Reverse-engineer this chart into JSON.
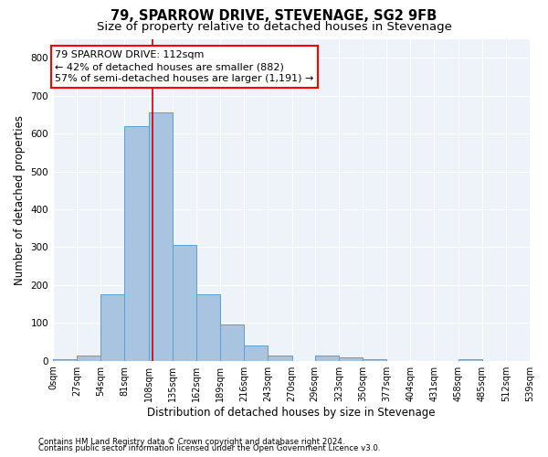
{
  "title_line1": "79, SPARROW DRIVE, STEVENAGE, SG2 9FB",
  "title_line2": "Size of property relative to detached houses in Stevenage",
  "xlabel": "Distribution of detached houses by size in Stevenage",
  "ylabel": "Number of detached properties",
  "bar_color": "#a8c4e0",
  "bar_edge_color": "#5a9fd4",
  "annotation_line1": "79 SPARROW DRIVE: 112sqm",
  "annotation_line2": "← 42% of detached houses are smaller (882)",
  "annotation_line3": "57% of semi-detached houses are larger (1,191) →",
  "vline_x": 112,
  "vline_color": "#cc0000",
  "footnote1": "Contains HM Land Registry data © Crown copyright and database right 2024.",
  "footnote2": "Contains public sector information licensed under the Open Government Licence v3.0.",
  "bin_edges": [
    0,
    27,
    54,
    81,
    108,
    135,
    162,
    189,
    216,
    243,
    270,
    296,
    323,
    350,
    377,
    404,
    431,
    458,
    485,
    512,
    539
  ],
  "bar_heights": [
    5,
    13,
    175,
    620,
    655,
    305,
    175,
    97,
    40,
    13,
    0,
    13,
    10,
    5,
    0,
    0,
    0,
    5,
    0,
    0
  ],
  "ylim": [
    0,
    850
  ],
  "yticks": [
    0,
    100,
    200,
    300,
    400,
    500,
    600,
    700,
    800
  ],
  "background_color": "#eef2f9",
  "grid_color": "#ffffff",
  "title_fontsize": 10.5,
  "subtitle_fontsize": 9.5,
  "tick_label_fontsize": 7,
  "axis_label_fontsize": 8.5,
  "annotation_fontsize": 8
}
